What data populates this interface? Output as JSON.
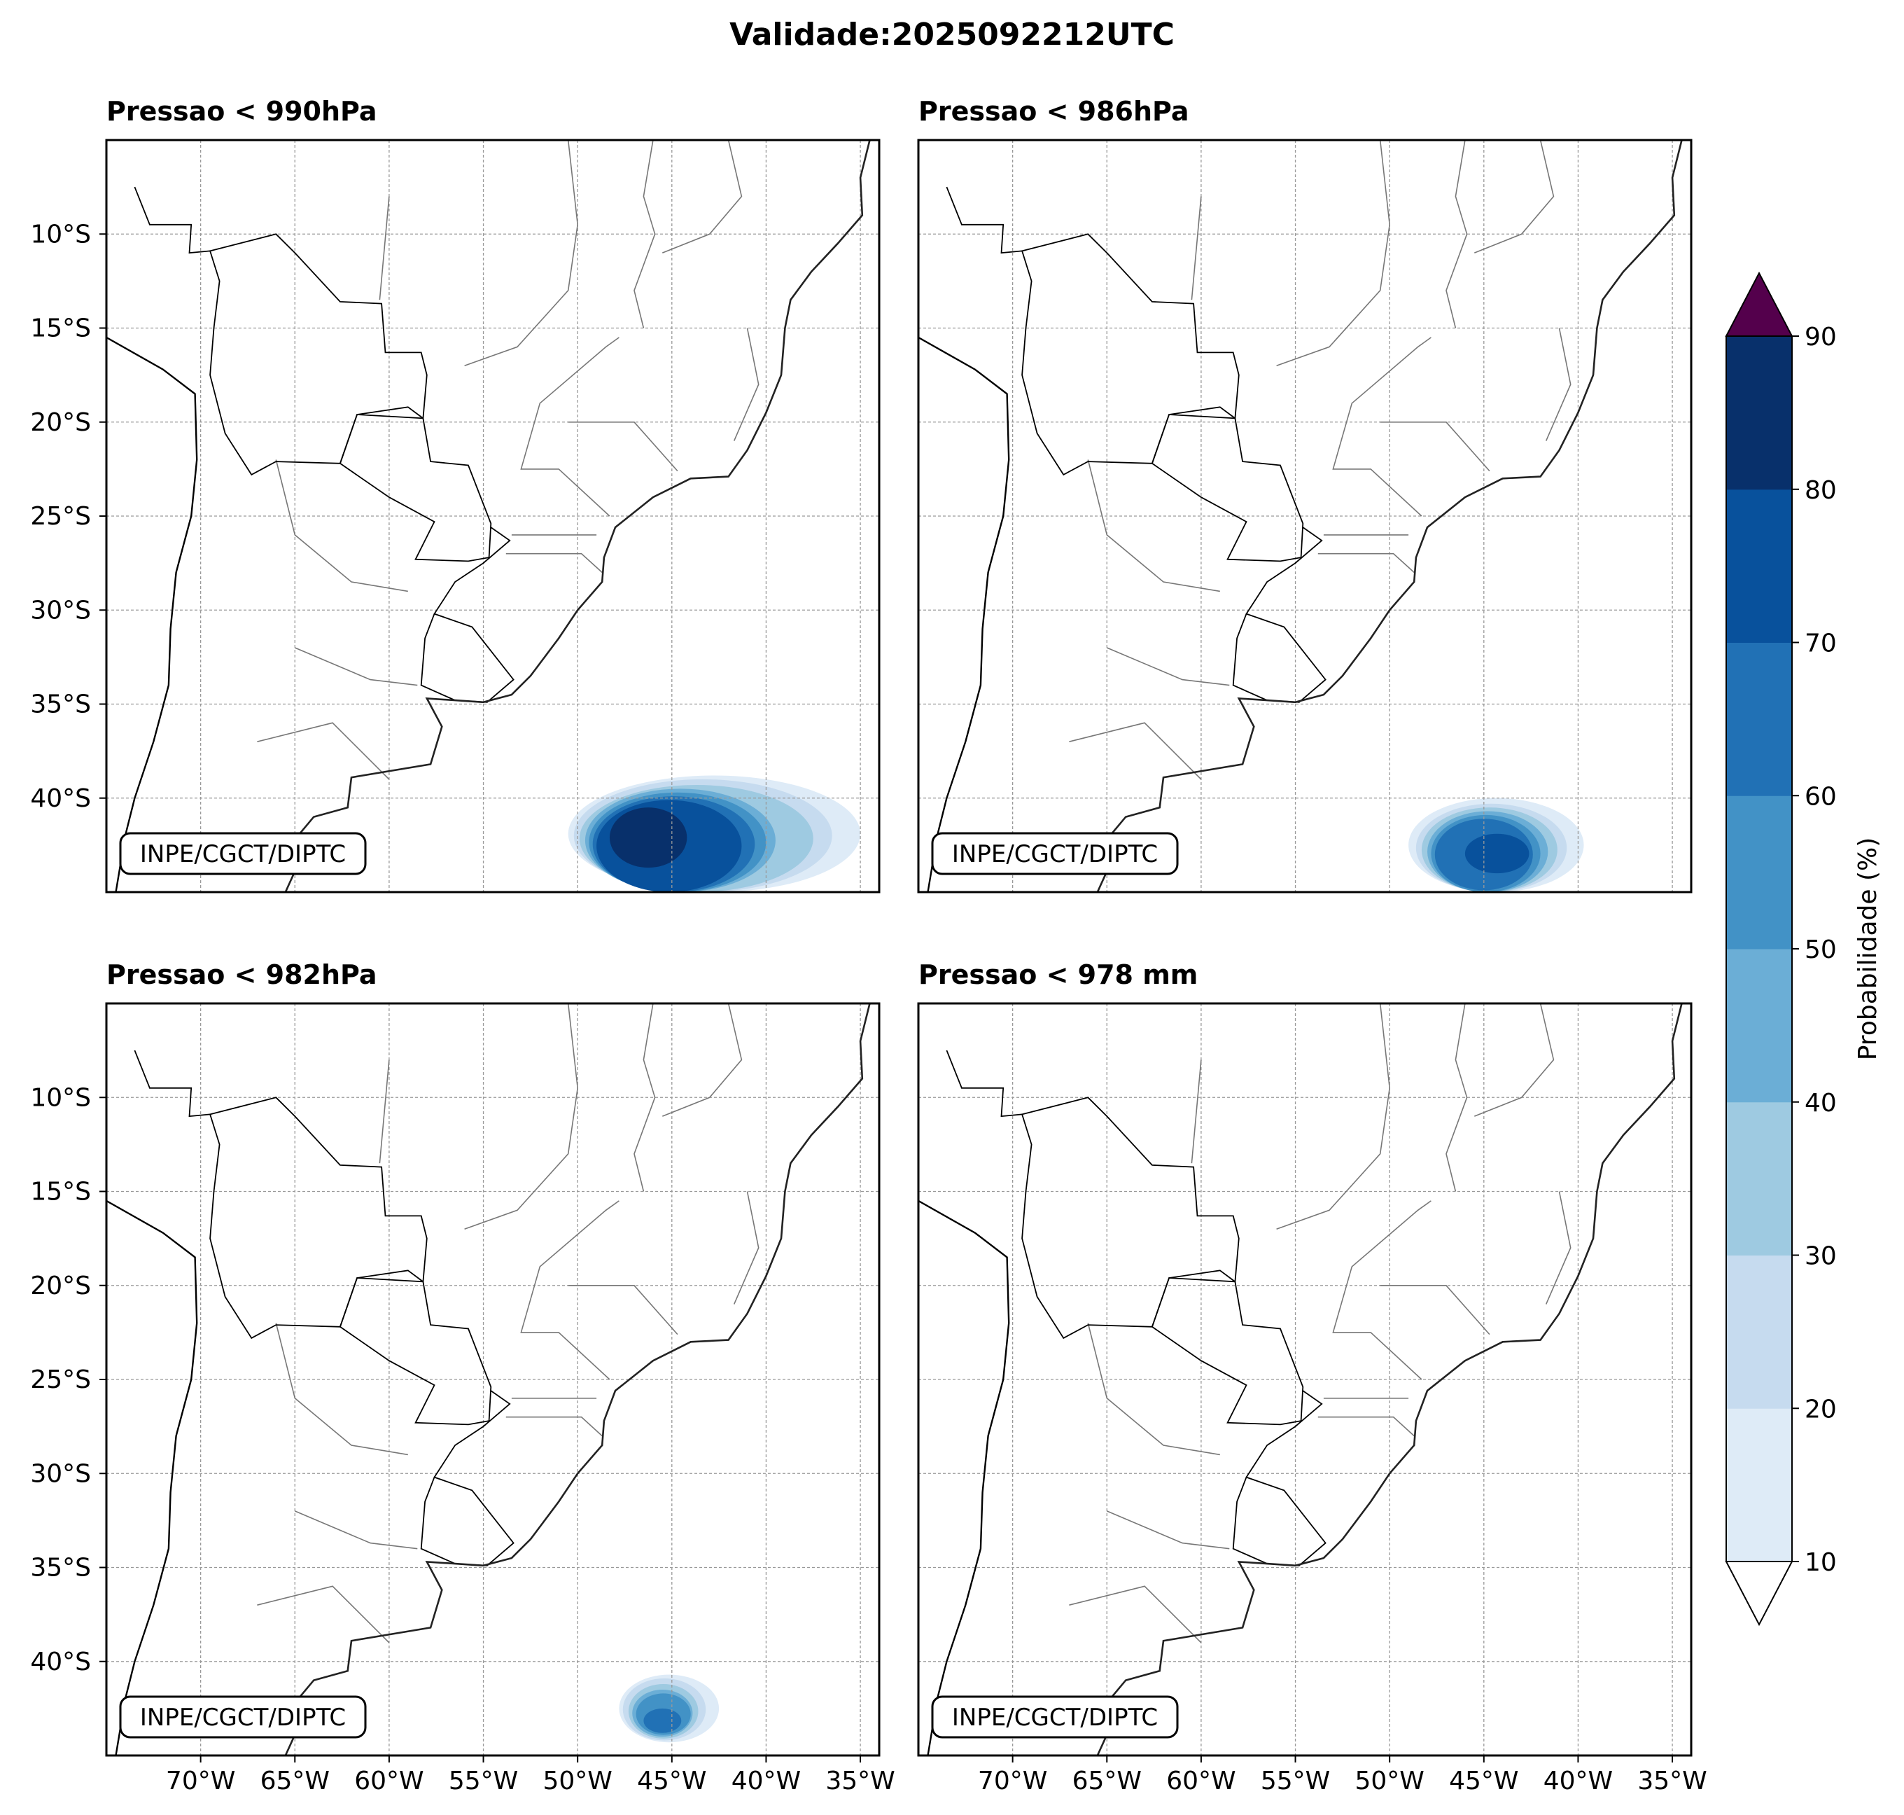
{
  "figure": {
    "title": "Validade:2025092212UTC"
  },
  "panels": [
    {
      "title": "Pressao < 990hPa",
      "watermark": "INPE/CGCT/DIPTC"
    },
    {
      "title": "Pressao < 986hPa",
      "watermark": "INPE/CGCT/DIPTC"
    },
    {
      "title": "Pressao < 982hPa",
      "watermark": "INPE/CGCT/DIPTC"
    },
    {
      "title": "Pressao < 978 mm",
      "watermark": "INPE/CGCT/DIPTC"
    }
  ],
  "map": {
    "lon_range": [
      -75,
      -34
    ],
    "lat_range": [
      -45,
      -5
    ],
    "lon_ticks": [
      -70,
      -65,
      -60,
      -55,
      -50,
      -45,
      -40,
      -35
    ],
    "lon_tick_labels": [
      "70°W",
      "65°W",
      "60°W",
      "55°W",
      "50°W",
      "45°W",
      "40°W",
      "35°W"
    ],
    "lat_ticks": [
      -10,
      -15,
      -20,
      -25,
      -30,
      -35,
      -40
    ],
    "lat_tick_labels": [
      "10°S",
      "15°S",
      "20°S",
      "25°S",
      "30°S",
      "35°S",
      "40°S"
    ]
  },
  "colorbar": {
    "label": "Probabilidade (%)",
    "levels": [
      10,
      20,
      30,
      40,
      50,
      60,
      70,
      80,
      90
    ],
    "tick_labels": [
      "10",
      "20",
      "30",
      "40",
      "50",
      "60",
      "70",
      "80",
      "90"
    ],
    "colors": [
      "#deebf7",
      "#c6dbef",
      "#9ecae1",
      "#6baed6",
      "#4292c6",
      "#2171b5",
      "#08519c",
      "#08306b"
    ],
    "over_color": "#54004c",
    "under_color": "#ffffff"
  },
  "chart_data": {
    "type": "heatmap",
    "variable": "Probabilidade (%)",
    "valid_time": "2025092212UTC",
    "features": [
      {
        "panel": "Pressao < 990hPa",
        "center_lon": -46.5,
        "center_lat": -42.5,
        "max_probability_range": [
          80,
          90
        ],
        "bands": [
          {
            "level": 10,
            "lon_range": [
              -50.5,
              -35
            ],
            "lat_range": [
              -45,
              -38.8
            ]
          },
          {
            "level": 20,
            "lon_range": [
              -50.2,
              -36.5
            ],
            "lat_range": [
              -45,
              -39.0
            ]
          },
          {
            "level": 30,
            "lon_range": [
              -49.9,
              -37.5
            ],
            "lat_range": [
              -45,
              -39.3
            ]
          },
          {
            "level": 40,
            "lon_range": [
              -49.6,
              -39.5
            ],
            "lat_range": [
              -45,
              -39.5
            ]
          },
          {
            "level": 50,
            "lon_range": [
              -49.4,
              -40.0
            ],
            "lat_range": [
              -45,
              -39.7
            ]
          },
          {
            "level": 60,
            "lon_range": [
              -49.2,
              -40.6
            ],
            "lat_range": [
              -45,
              -39.9
            ]
          },
          {
            "level": 70,
            "lon_range": [
              -49.0,
              -41.3
            ],
            "lat_range": [
              -45,
              -40.1
            ]
          },
          {
            "level": 80,
            "lon_range": [
              -48.3,
              -44.2
            ],
            "lat_range": [
              -43.7,
              -40.5
            ]
          }
        ]
      },
      {
        "panel": "Pressao < 986hPa",
        "center_lon": -44.5,
        "center_lat": -42.8,
        "max_probability_range": [
          70,
          80
        ],
        "bands": [
          {
            "level": 10,
            "lon_range": [
              -49.0,
              -39.7
            ],
            "lat_range": [
              -45,
              -40.0
            ]
          },
          {
            "level": 20,
            "lon_range": [
              -48.6,
              -40.6
            ],
            "lat_range": [
              -45,
              -40.3
            ]
          },
          {
            "level": 30,
            "lon_range": [
              -48.3,
              -41.1
            ],
            "lat_range": [
              -45,
              -40.5
            ]
          },
          {
            "level": 40,
            "lon_range": [
              -48.0,
              -41.6
            ],
            "lat_range": [
              -45,
              -40.7
            ]
          },
          {
            "level": 50,
            "lon_range": [
              -47.8,
              -42.0
            ],
            "lat_range": [
              -45,
              -40.9
            ]
          },
          {
            "level": 60,
            "lon_range": [
              -47.6,
              -42.4
            ],
            "lat_range": [
              -44.9,
              -41.1
            ]
          },
          {
            "level": 70,
            "lon_range": [
              -46.0,
              -42.6
            ],
            "lat_range": [
              -44.0,
              -41.9
            ]
          }
        ]
      },
      {
        "panel": "Pressao < 982hPa",
        "center_lon": -45.5,
        "center_lat": -43.0,
        "max_probability_range": [
          60,
          70
        ],
        "bands": [
          {
            "level": 10,
            "lon_range": [
              -47.8,
              -42.5
            ],
            "lat_range": [
              -44.3,
              -40.7
            ]
          },
          {
            "level": 20,
            "lon_range": [
              -47.6,
              -43.2
            ],
            "lat_range": [
              -44.2,
              -40.9
            ]
          },
          {
            "level": 30,
            "lon_range": [
              -47.3,
              -43.6
            ],
            "lat_range": [
              -44.1,
              -41.2
            ]
          },
          {
            "level": 40,
            "lon_range": [
              -47.1,
              -43.9
            ],
            "lat_range": [
              -44.0,
              -41.5
            ]
          },
          {
            "level": 50,
            "lon_range": [
              -46.9,
              -44.0
            ],
            "lat_range": [
              -43.9,
              -41.7
            ]
          },
          {
            "level": 60,
            "lon_range": [
              -46.5,
              -44.5
            ],
            "lat_range": [
              -43.8,
              -42.5
            ]
          }
        ]
      },
      {
        "panel": "Pressao < 978 mm",
        "center_lon": null,
        "center_lat": null,
        "max_probability_range": [
          0,
          10
        ],
        "bands": []
      }
    ]
  }
}
